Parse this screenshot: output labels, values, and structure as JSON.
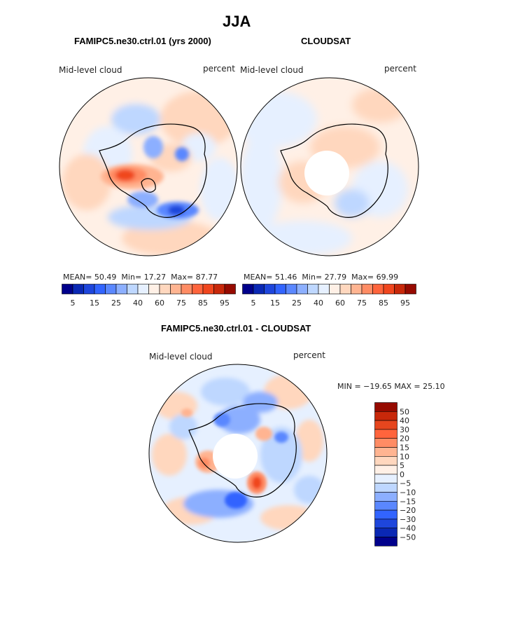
{
  "figure": {
    "title": "JJA",
    "panels": [
      {
        "title": "FAMIPC5.ne30.ctrl.01 (yrs 2000)",
        "left_label": "Mid-level cloud",
        "right_label": "percent",
        "stats": {
          "mean_label": "MEAN=",
          "mean": "50.49",
          "min_label": "Min=",
          "min": "17.27",
          "max_label": "Max=",
          "max": "87.77"
        }
      },
      {
        "title": "CLOUDSAT",
        "left_label": "Mid-level cloud",
        "right_label": "percent",
        "stats": {
          "mean_label": "MEAN=",
          "mean": "51.46",
          "min_label": "Min=",
          "min": "27.79",
          "max_label": "Max=",
          "max": "69.99"
        }
      },
      {
        "title": "FAMIPC5.ne30.ctrl.01 - CLOUDSAT",
        "left_label": "Mid-level cloud",
        "right_label": "percent",
        "minmax_text": "MIN = −19.65  MAX =  25.10"
      }
    ],
    "colorbar_abs": {
      "colors": [
        "#00008b",
        "#0a28b4",
        "#1e46dc",
        "#3264ff",
        "#5a87ff",
        "#8cafff",
        "#bed7ff",
        "#e6f0ff",
        "#fff0e6",
        "#ffd7be",
        "#ffb491",
        "#ff8c64",
        "#ff643c",
        "#f0461e",
        "#c8280a",
        "#960a00"
      ],
      "tick_labels": [
        "5",
        "15",
        "25",
        "40",
        "60",
        "75",
        "85",
        "95"
      ]
    },
    "colorbar_diff": {
      "colors": [
        "#960a00",
        "#c8280a",
        "#e6461e",
        "#ff643c",
        "#ff8c64",
        "#ffb491",
        "#ffd7be",
        "#fff0e6",
        "#e6f0ff",
        "#bed7ff",
        "#8cafff",
        "#5a87ff",
        "#3264ff",
        "#1e46dc",
        "#0a28b4",
        "#00008b"
      ],
      "tick_labels": [
        "50",
        "40",
        "30",
        "20",
        "15",
        "10",
        "5",
        "0",
        "−5",
        "−10",
        "−15",
        "−20",
        "−30",
        "−40",
        "−50"
      ]
    }
  }
}
